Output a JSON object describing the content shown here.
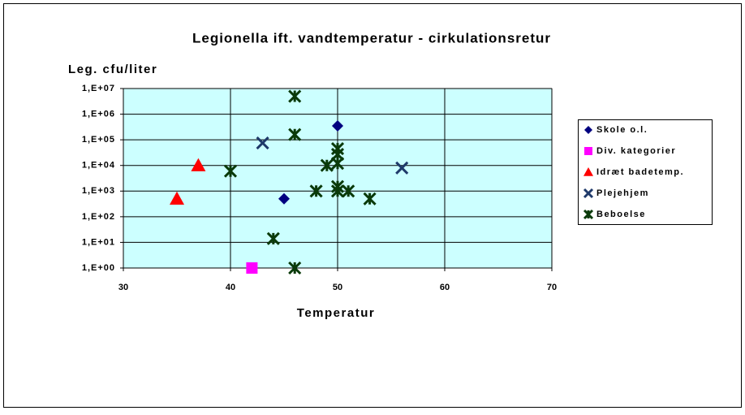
{
  "chart_data": {
    "type": "scatter",
    "title": "Legionella ift. vandtemperatur - cirkulationsretur",
    "y_label": "Leg. cfu/liter",
    "x_label": "Temperatur",
    "xlim": [
      30,
      70
    ],
    "xticks": [
      30,
      40,
      50,
      60,
      70
    ],
    "ylim": [
      1,
      10000000
    ],
    "yscale": "log",
    "yticks": [
      {
        "value": 1,
        "label": "1,E+00"
      },
      {
        "value": 10,
        "label": "1,E+01"
      },
      {
        "value": 100,
        "label": "1,E+02"
      },
      {
        "value": 1000,
        "label": "1,E+03"
      },
      {
        "value": 10000,
        "label": "1,E+04"
      },
      {
        "value": 100000,
        "label": "1,E+05"
      },
      {
        "value": 1000000,
        "label": "1,E+06"
      },
      {
        "value": 10000000,
        "label": "1,E+07"
      }
    ],
    "grid": true,
    "plot_background": "#ccffff",
    "legend": "right",
    "series": [
      {
        "name": "Skole o.l.",
        "color": "#000080",
        "marker": "diamond",
        "x": [
          50,
          45
        ],
        "values": [
          350000,
          500
        ]
      },
      {
        "name": "Div. kategorier",
        "color": "#ff00ff",
        "marker": "square",
        "x": [
          42
        ],
        "values": [
          1
        ]
      },
      {
        "name": "Idræt badetemp.",
        "color": "#ff0000",
        "marker": "triangle",
        "x": [
          37,
          35
        ],
        "values": [
          10000,
          500
        ]
      },
      {
        "name": "Plejehjem",
        "color": "#1f3a6a",
        "marker": "x",
        "x": [
          43,
          56
        ],
        "values": [
          75000,
          8000
        ]
      },
      {
        "name": "Beboelse",
        "color": "#0a3a0a",
        "marker": "star",
        "x": [
          46,
          46,
          40,
          50,
          50,
          49,
          50,
          50,
          50,
          51,
          48,
          53,
          44,
          46
        ],
        "values": [
          5000000,
          160000,
          6000,
          45000,
          27000,
          10000,
          12000,
          1500,
          1000,
          1000,
          1000,
          500,
          14,
          1
        ]
      }
    ]
  }
}
